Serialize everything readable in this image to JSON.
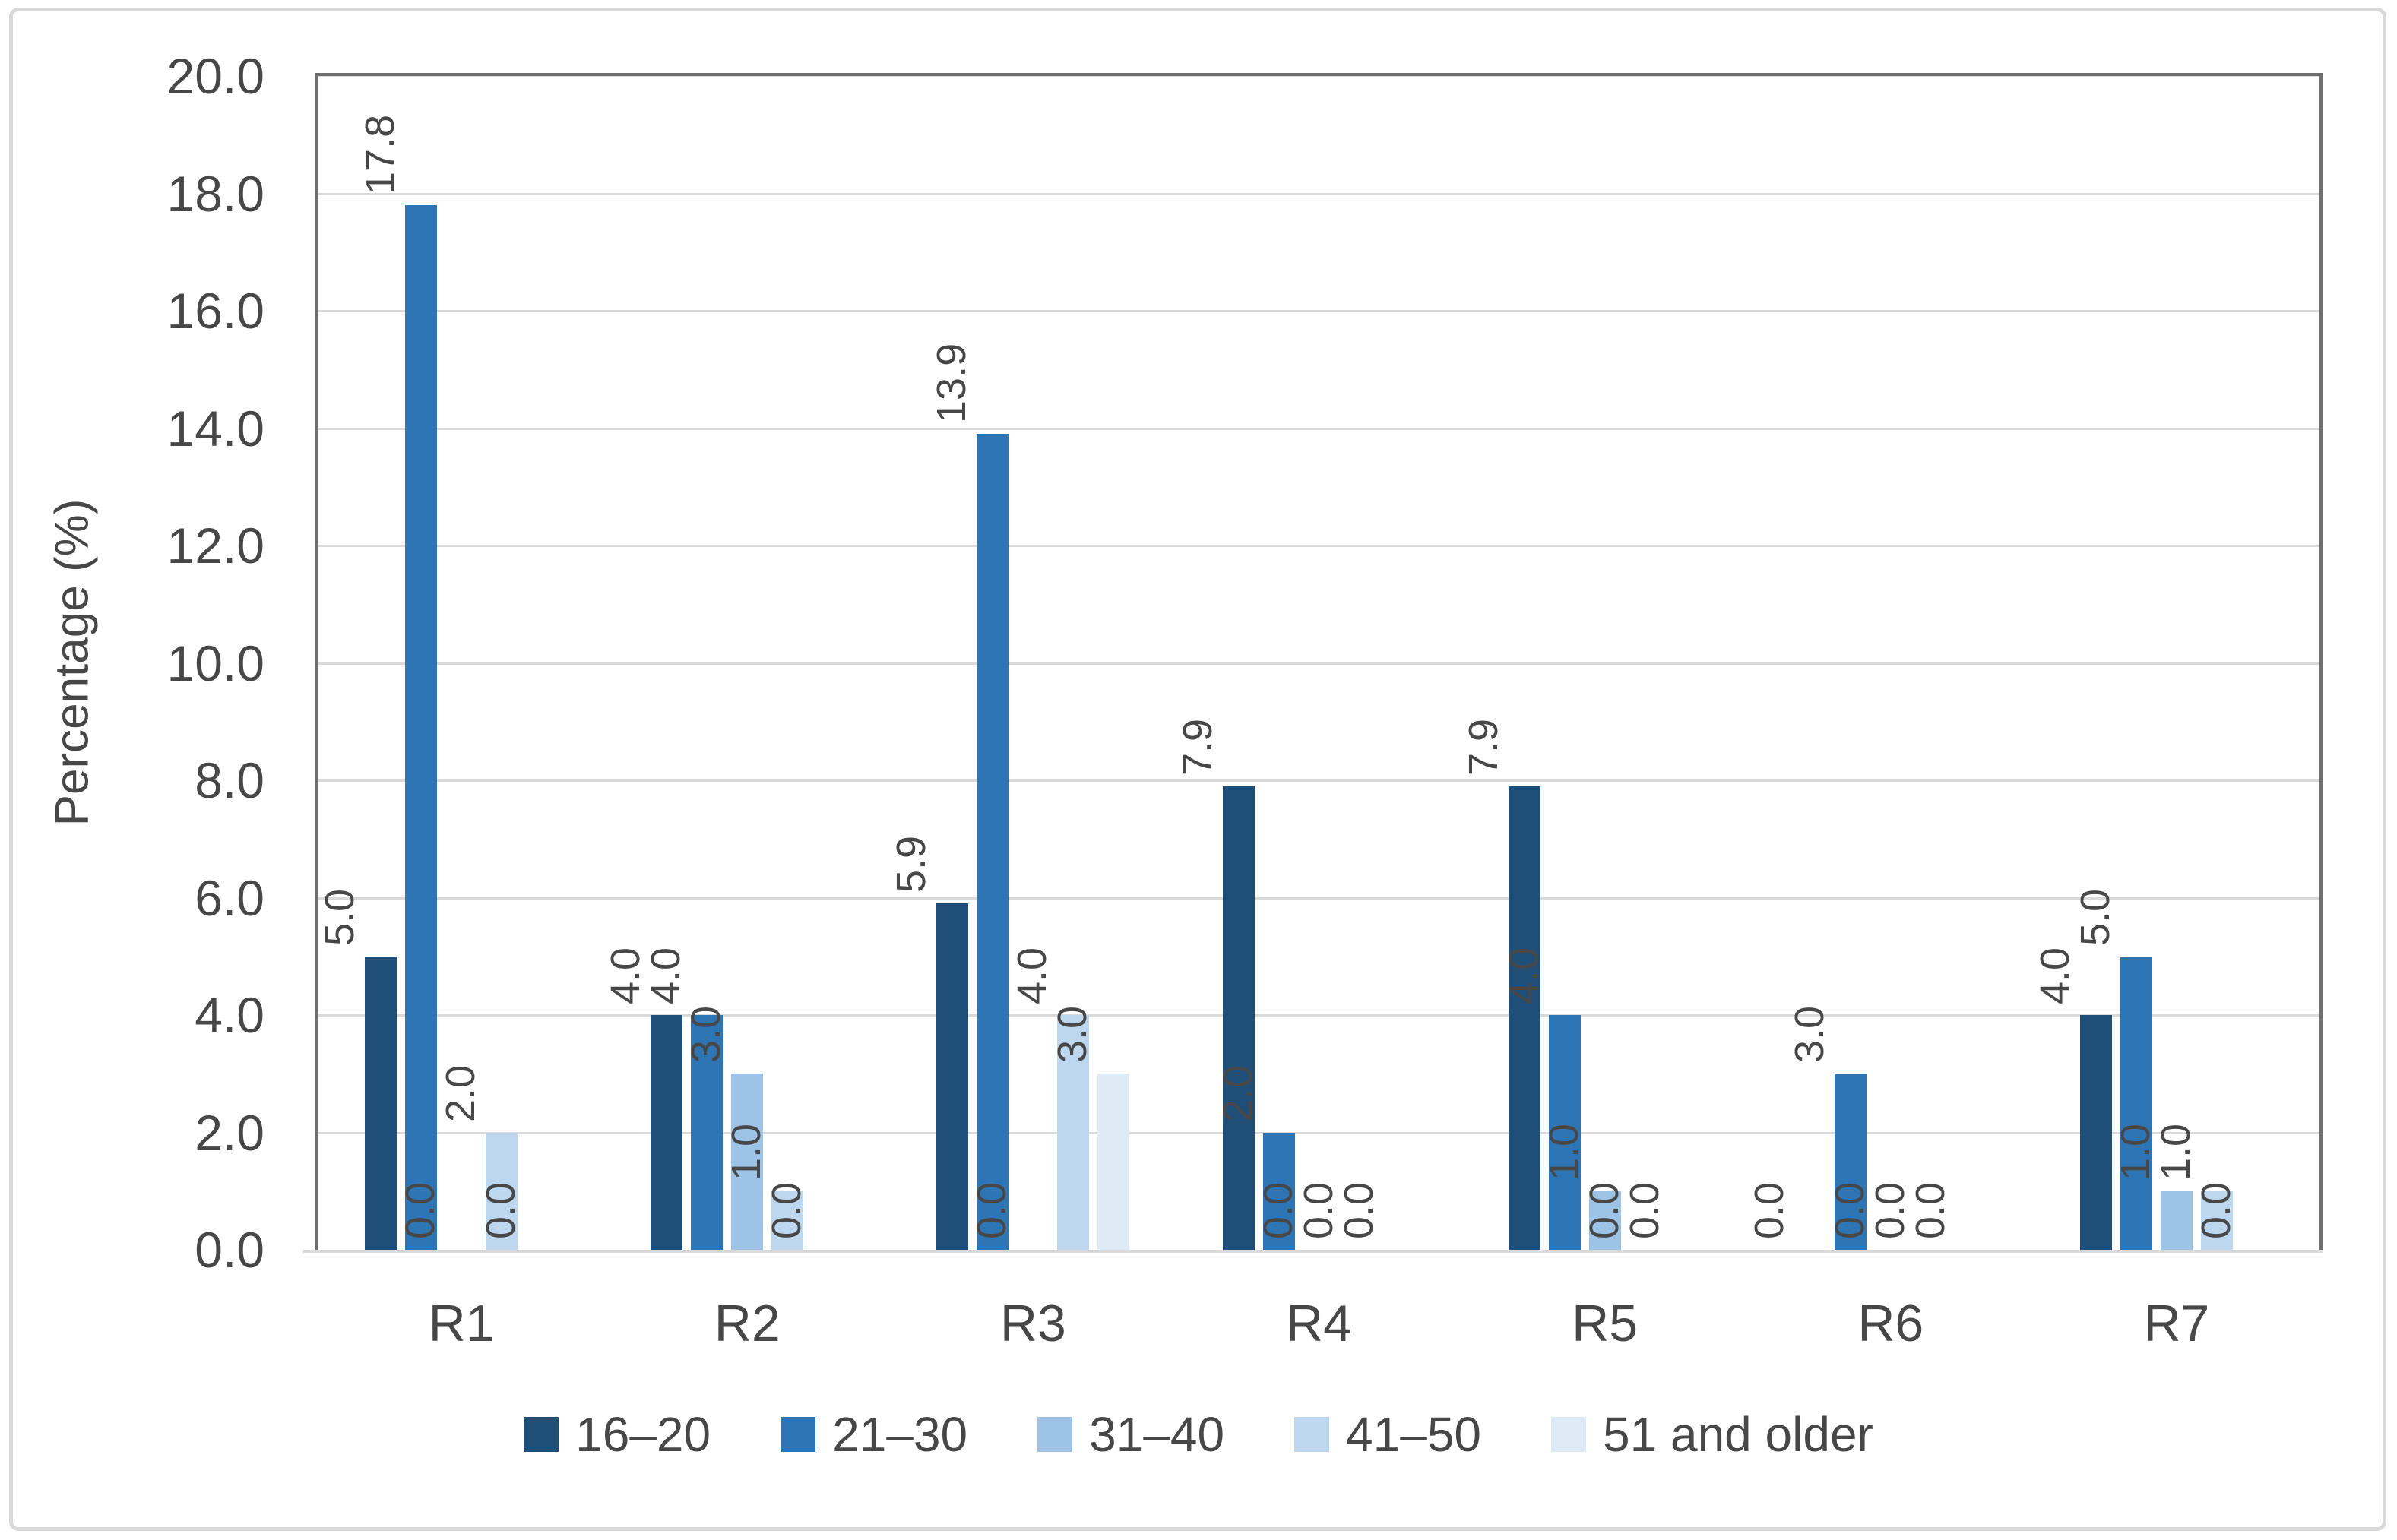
{
  "figure": {
    "colors": {
      "text": "#474747",
      "gridline": "#d9d9d9",
      "plot_border": "#6f6f6f",
      "axis_line": "#d9d9d9",
      "figure_border": "#d8d8d8",
      "background": "#ffffff"
    }
  },
  "chart_data": {
    "type": "bar",
    "title": "",
    "xlabel": "",
    "ylabel": "Percentage (%)",
    "categories": [
      "R1",
      "R2",
      "R3",
      "R4",
      "R5",
      "R6",
      "R7"
    ],
    "series": [
      {
        "name": "16–20",
        "color": "#1f4e79",
        "values": [
          5.0,
          4.0,
          5.9,
          7.9,
          7.9,
          0.0,
          4.0
        ]
      },
      {
        "name": "21–30",
        "color": "#2e75b6",
        "values": [
          17.8,
          4.0,
          13.9,
          2.0,
          4.0,
          3.0,
          5.0
        ]
      },
      {
        "name": "31–40",
        "color": "#9dc3e6",
        "values": [
          0.0,
          3.0,
          0.0,
          0.0,
          1.0,
          0.0,
          1.0
        ]
      },
      {
        "name": "41–50",
        "color": "#bdd7ee",
        "values": [
          2.0,
          1.0,
          4.0,
          0.0,
          0.0,
          0.0,
          1.0
        ]
      },
      {
        "name": "51 and older",
        "color": "#deebf7",
        "values": [
          0.0,
          0.0,
          3.0,
          0.0,
          0.0,
          0.0,
          0.0
        ]
      }
    ],
    "ylim": [
      0,
      20
    ],
    "ytick_step": 2,
    "yticks": [
      "0.0",
      "2.0",
      "4.0",
      "6.0",
      "8.0",
      "10.0",
      "12.0",
      "14.0",
      "16.0",
      "18.0",
      "20.0"
    ],
    "grid": true,
    "data_labels": true,
    "data_label_rotation": 90,
    "data_label_decimals": 1,
    "legend_position": "bottom"
  }
}
